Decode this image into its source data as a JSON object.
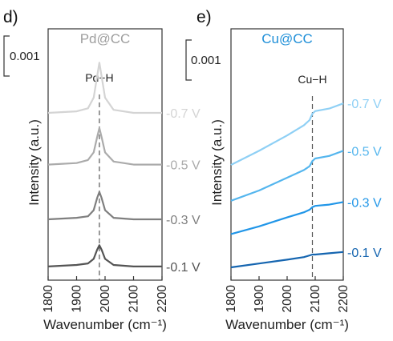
{
  "figure_text": {
    "panel_d": "d)",
    "panel_e": "e)"
  },
  "chart_data": [
    {
      "type": "line",
      "panel": "d)",
      "title": "Pd@CC",
      "title_color": "#9e9e9e",
      "xlabel": "Wavenumber (cm⁻¹)",
      "ylabel": "Intensity (a.u.)",
      "xlim": [
        1800,
        2200
      ],
      "xticks": [
        "1800",
        "1900",
        "2000",
        "2100",
        "2200"
      ],
      "scale_bar_label": "0.001",
      "annotation": {
        "label": "Pd−H",
        "x": 1980
      },
      "grid": false,
      "series": [
        {
          "name": "-0.7 V",
          "color": "#d4d4d4",
          "offset": 0.0108,
          "points": [
            [
              1800,
              0.0002
            ],
            [
              1900,
              0.0003
            ],
            [
              1940,
              0.0005
            ],
            [
              1960,
              0.0012
            ],
            [
              1972,
              0.0026
            ],
            [
              1980,
              0.0035
            ],
            [
              1988,
              0.0026
            ],
            [
              2000,
              0.0012
            ],
            [
              2030,
              0.0004
            ],
            [
              2100,
              0.0002
            ],
            [
              2200,
              0.0002
            ]
          ]
        },
        {
          "name": "-0.5 V",
          "color": "#ababab",
          "offset": 0.0074,
          "points": [
            [
              1800,
              0.0002
            ],
            [
              1900,
              0.0003
            ],
            [
              1940,
              0.0005
            ],
            [
              1960,
              0.001
            ],
            [
              1972,
              0.002
            ],
            [
              1980,
              0.0026
            ],
            [
              1988,
              0.002
            ],
            [
              2000,
              0.001
            ],
            [
              2030,
              0.0004
            ],
            [
              2100,
              0.0002
            ],
            [
              2200,
              0.0002
            ]
          ]
        },
        {
          "name": "-0.3 V",
          "color": "#7f7f7f",
          "offset": 0.0038,
          "points": [
            [
              1800,
              0.0002
            ],
            [
              1900,
              0.0003
            ],
            [
              1940,
              0.0004
            ],
            [
              1960,
              0.0008
            ],
            [
              1972,
              0.0016
            ],
            [
              1980,
              0.002
            ],
            [
              1988,
              0.0016
            ],
            [
              2000,
              0.0008
            ],
            [
              2030,
              0.0003
            ],
            [
              2100,
              0.0002
            ],
            [
              2200,
              0.0002
            ]
          ]
        },
        {
          "name": "-0.1 V",
          "color": "#545454",
          "offset": 0.0008,
          "points": [
            [
              1800,
              0.0001
            ],
            [
              1900,
              0.0002
            ],
            [
              1940,
              0.0003
            ],
            [
              1960,
              0.0006
            ],
            [
              1972,
              0.0012
            ],
            [
              1980,
              0.0015
            ],
            [
              1988,
              0.0012
            ],
            [
              2000,
              0.0006
            ],
            [
              2030,
              0.0002
            ],
            [
              2100,
              0.0001
            ],
            [
              2200,
              0.0001
            ]
          ]
        }
      ]
    },
    {
      "type": "line",
      "panel": "e)",
      "title": "Cu@CC",
      "title_color": "#1f8fd8",
      "xlabel": "Wavenumber (cm⁻¹)",
      "ylabel": "Intensity (a.u.)",
      "xlim": [
        1800,
        2200
      ],
      "xticks": [
        "1800",
        "1900",
        "2000",
        "2100",
        "2200"
      ],
      "scale_bar_label": "0.001",
      "annotation": {
        "label": "Cu−H",
        "x": 2090
      },
      "grid": false,
      "series": [
        {
          "name": "-0.7 V",
          "color": "#8fd0f5",
          "offset": 0.009,
          "points": [
            [
              1800,
              0.0
            ],
            [
              1900,
              0.0011
            ],
            [
              2000,
              0.0023
            ],
            [
              2060,
              0.0031
            ],
            [
              2080,
              0.0035
            ],
            [
              2090,
              0.004
            ],
            [
              2100,
              0.0042
            ],
            [
              2150,
              0.0044
            ],
            [
              2200,
              0.0048
            ]
          ]
        },
        {
          "name": "-0.5 V",
          "color": "#55b6ee",
          "offset": 0.0062,
          "points": [
            [
              1800,
              0.0
            ],
            [
              1900,
              0.0008
            ],
            [
              2000,
              0.0018
            ],
            [
              2060,
              0.0024
            ],
            [
              2080,
              0.0027
            ],
            [
              2090,
              0.0031
            ],
            [
              2100,
              0.0033
            ],
            [
              2150,
              0.0035
            ],
            [
              2200,
              0.0039
            ]
          ]
        },
        {
          "name": "-0.3 V",
          "color": "#2196e8",
          "offset": 0.0036,
          "points": [
            [
              1800,
              0.0
            ],
            [
              1900,
              0.0006
            ],
            [
              2000,
              0.0013
            ],
            [
              2060,
              0.0017
            ],
            [
              2080,
              0.0019
            ],
            [
              2090,
              0.0021
            ],
            [
              2100,
              0.0022
            ],
            [
              2150,
              0.0023
            ],
            [
              2200,
              0.0025
            ]
          ]
        },
        {
          "name": "-0.1 V",
          "color": "#1565b0",
          "offset": 0.001,
          "points": [
            [
              1800,
              0.0
            ],
            [
              1900,
              0.0003
            ],
            [
              2000,
              0.0006
            ],
            [
              2060,
              0.0008
            ],
            [
              2090,
              0.001
            ],
            [
              2100,
              0.001
            ],
            [
              2150,
              0.0011
            ],
            [
              2200,
              0.0012
            ]
          ]
        }
      ]
    }
  ]
}
